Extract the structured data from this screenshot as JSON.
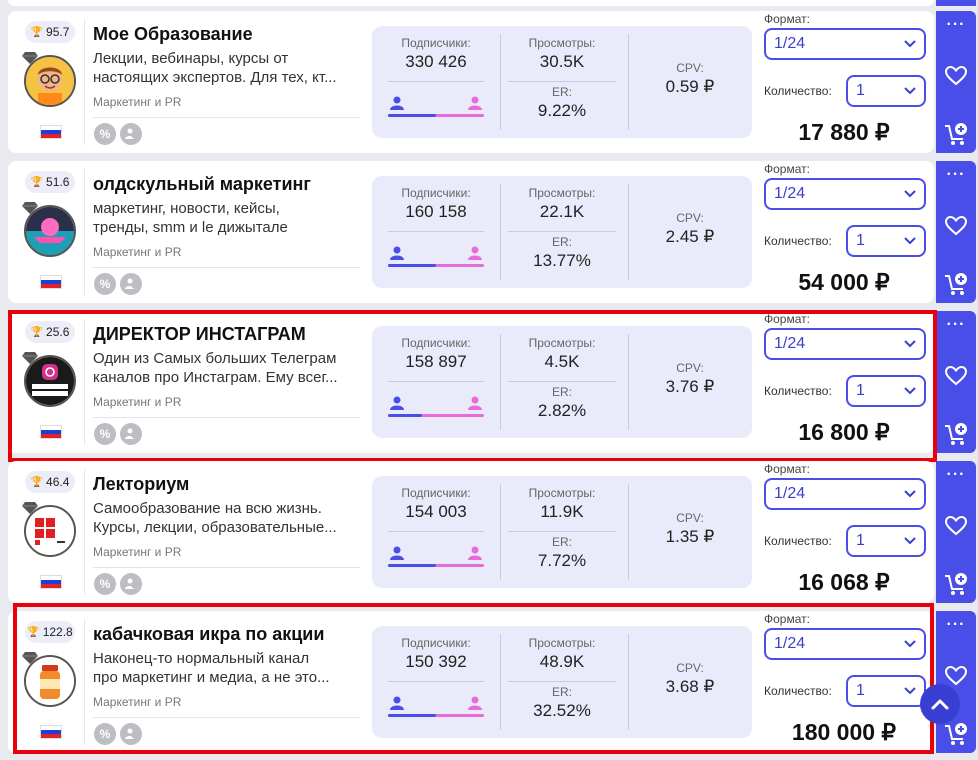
{
  "labels": {
    "subscribers": "Подписчики:",
    "views": "Просмотры:",
    "er": "ER:",
    "cpv": "CPV:",
    "format": "Формат:",
    "quantity": "Количество:"
  },
  "colors": {
    "accent": "#4a4ee8",
    "highlight": "#e8000b",
    "male": "#4a4ee8",
    "female": "#e86cd8"
  },
  "channels": [
    {
      "rating": "95.7",
      "title": "Мое Образование",
      "desc1": "Лекции, вебинары, курсы от",
      "desc2": "настоящих экспертов. Для тех, кт...",
      "category": "Маркетинг и PR",
      "subscribers": "330 426",
      "views": "30.5K",
      "er": "9.22%",
      "cpv": "0.59 ₽",
      "format": "1/24",
      "quantity": "1",
      "price": "17 880 ₽",
      "male_share": 0.5,
      "highlighted": false,
      "avatar": "cartoon-avatar"
    },
    {
      "rating": "51.6",
      "title": "олдскульный маркетинг",
      "desc1": "маркетинг, новости, кейсы,",
      "desc2": "тренды, smm и le дижыталe",
      "category": "Маркетинг и PR",
      "subscribers": "160 158",
      "views": "22.1K",
      "er": "13.77%",
      "cpv": "2.45 ₽",
      "format": "1/24",
      "quantity": "1",
      "price": "54 000 ₽",
      "male_share": 0.5,
      "highlighted": false,
      "avatar": "retro-avatar"
    },
    {
      "rating": "25.6",
      "title": "ДИРЕКТОР ИНСТАГРАМ",
      "desc1": "Один из Самых больших Телеграм",
      "desc2": "каналов про Инстаграм. Ему всег...",
      "category": "Маркетинг и PR",
      "subscribers": "158 897",
      "views": "4.5K",
      "er": "2.82%",
      "cpv": "3.76 ₽",
      "format": "1/24",
      "quantity": "1",
      "price": "16 800 ₽",
      "male_share": 0.35,
      "highlighted": true,
      "avatar": "instagram-avatar"
    },
    {
      "rating": "46.4",
      "title": "Лекториум",
      "desc1": "Самообразование на всю жизнь.",
      "desc2": "Курсы, лекции, образовательные...",
      "category": "Маркетинг и PR",
      "subscribers": "154 003",
      "views": "11.9K",
      "er": "7.72%",
      "cpv": "1.35 ₽",
      "format": "1/24",
      "quantity": "1",
      "price": "16 068 ₽",
      "male_share": 0.5,
      "highlighted": false,
      "avatar": "lektorium-avatar"
    },
    {
      "rating": "122.8",
      "title": "кабачковая икра по акции",
      "desc1": "Наконец-то нормальный канал",
      "desc2": "про маркетинг и медиа, а не это...",
      "category": "Маркетинг и PR",
      "subscribers": "150 392",
      "views": "48.9K",
      "er": "32.52%",
      "cpv": "3.68 ₽",
      "format": "1/24",
      "quantity": "1",
      "price": "180 000 ₽",
      "male_share": 0.5,
      "highlighted": true,
      "avatar": "jar-avatar"
    }
  ]
}
